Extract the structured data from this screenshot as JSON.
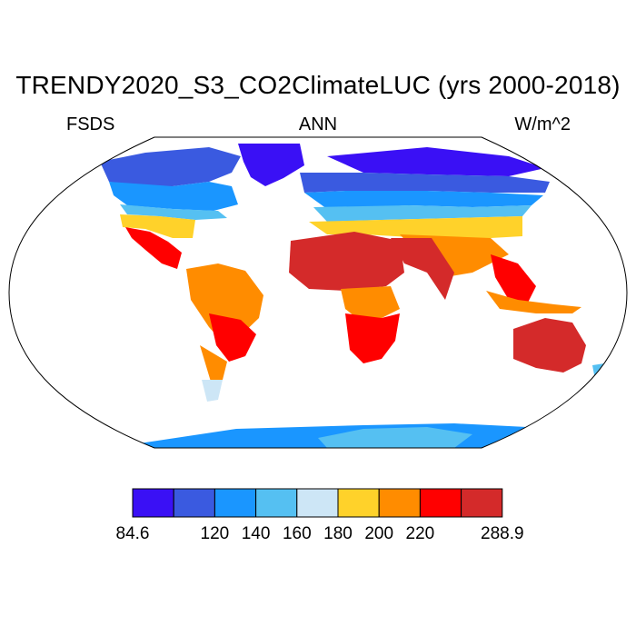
{
  "title": "TRENDY2020_S3_CO2ClimateLUC (yrs 2000-2018)",
  "subtitle_left": "FSDS",
  "subtitle_center": "ANN",
  "subtitle_right": "W/m^2",
  "colorbar": {
    "colors": [
      "#3a10f5",
      "#3a5ae0",
      "#1a96ff",
      "#55c0f2",
      "#cde6f6",
      "#ffd22a",
      "#ff8c00",
      "#ff0000",
      "#d42a2a"
    ],
    "labels": [
      "84.6",
      "120",
      "140",
      "160",
      "180",
      "200",
      "220",
      "288.9"
    ],
    "label_boundaries": [
      0,
      2,
      3,
      4,
      5,
      6,
      7,
      9
    ]
  }
}
